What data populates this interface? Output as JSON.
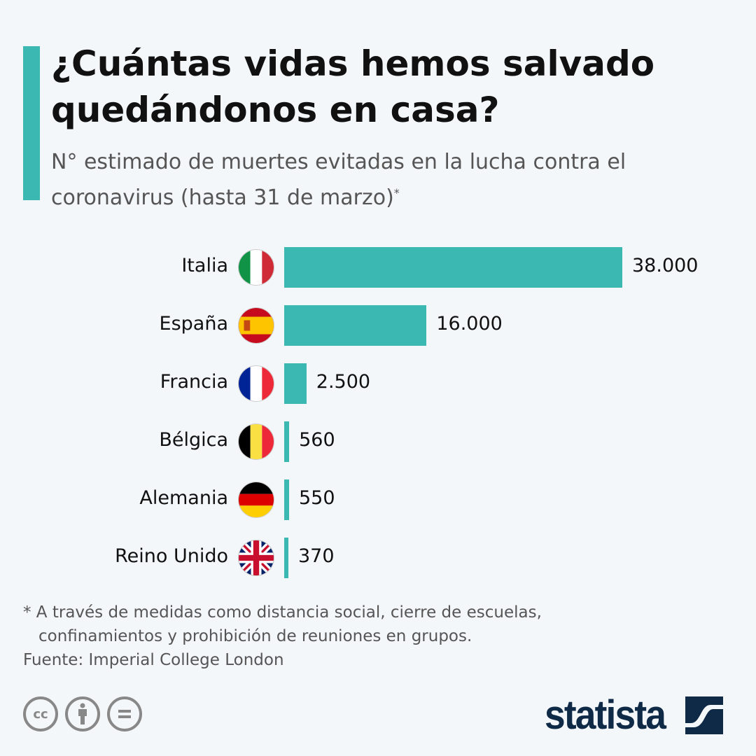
{
  "header": {
    "title": "¿Cuántas vidas hemos salvado quedándonos en casa?",
    "subtitle": "N° estimado de muertes evitadas en la lucha contra el coronavirus (hasta 31 de marzo)",
    "subtitle_mark": "*"
  },
  "chart_data": {
    "type": "bar",
    "orientation": "horizontal",
    "categories": [
      "Italia",
      "España",
      "Francia",
      "Bélgica",
      "Alemania",
      "Reino Unido"
    ],
    "values": [
      38000,
      16000,
      2500,
      560,
      550,
      370
    ],
    "value_labels": [
      "38.000",
      "16.000",
      "2.500",
      "560",
      "550",
      "370"
    ],
    "flags": [
      "italy-flag",
      "spain-flag",
      "france-flag",
      "belgium-flag",
      "germany-flag",
      "uk-flag"
    ],
    "bar_color": "#3cb8b2",
    "grid": false
  },
  "footer": {
    "note_line1": "* A través de medidas como distancia social, cierre de escuelas,",
    "note_line2": "confinamientos y prohibición de reuniones en grupos.",
    "source": "Fuente: Imperial College London",
    "license_icons": [
      "cc-icon",
      "attribution-icon",
      "no-derivatives-icon"
    ],
    "logo": "statista"
  },
  "colors": {
    "accent": "#3cb8b2",
    "logo": "#0f2a47",
    "background": "#f4f7fa"
  }
}
